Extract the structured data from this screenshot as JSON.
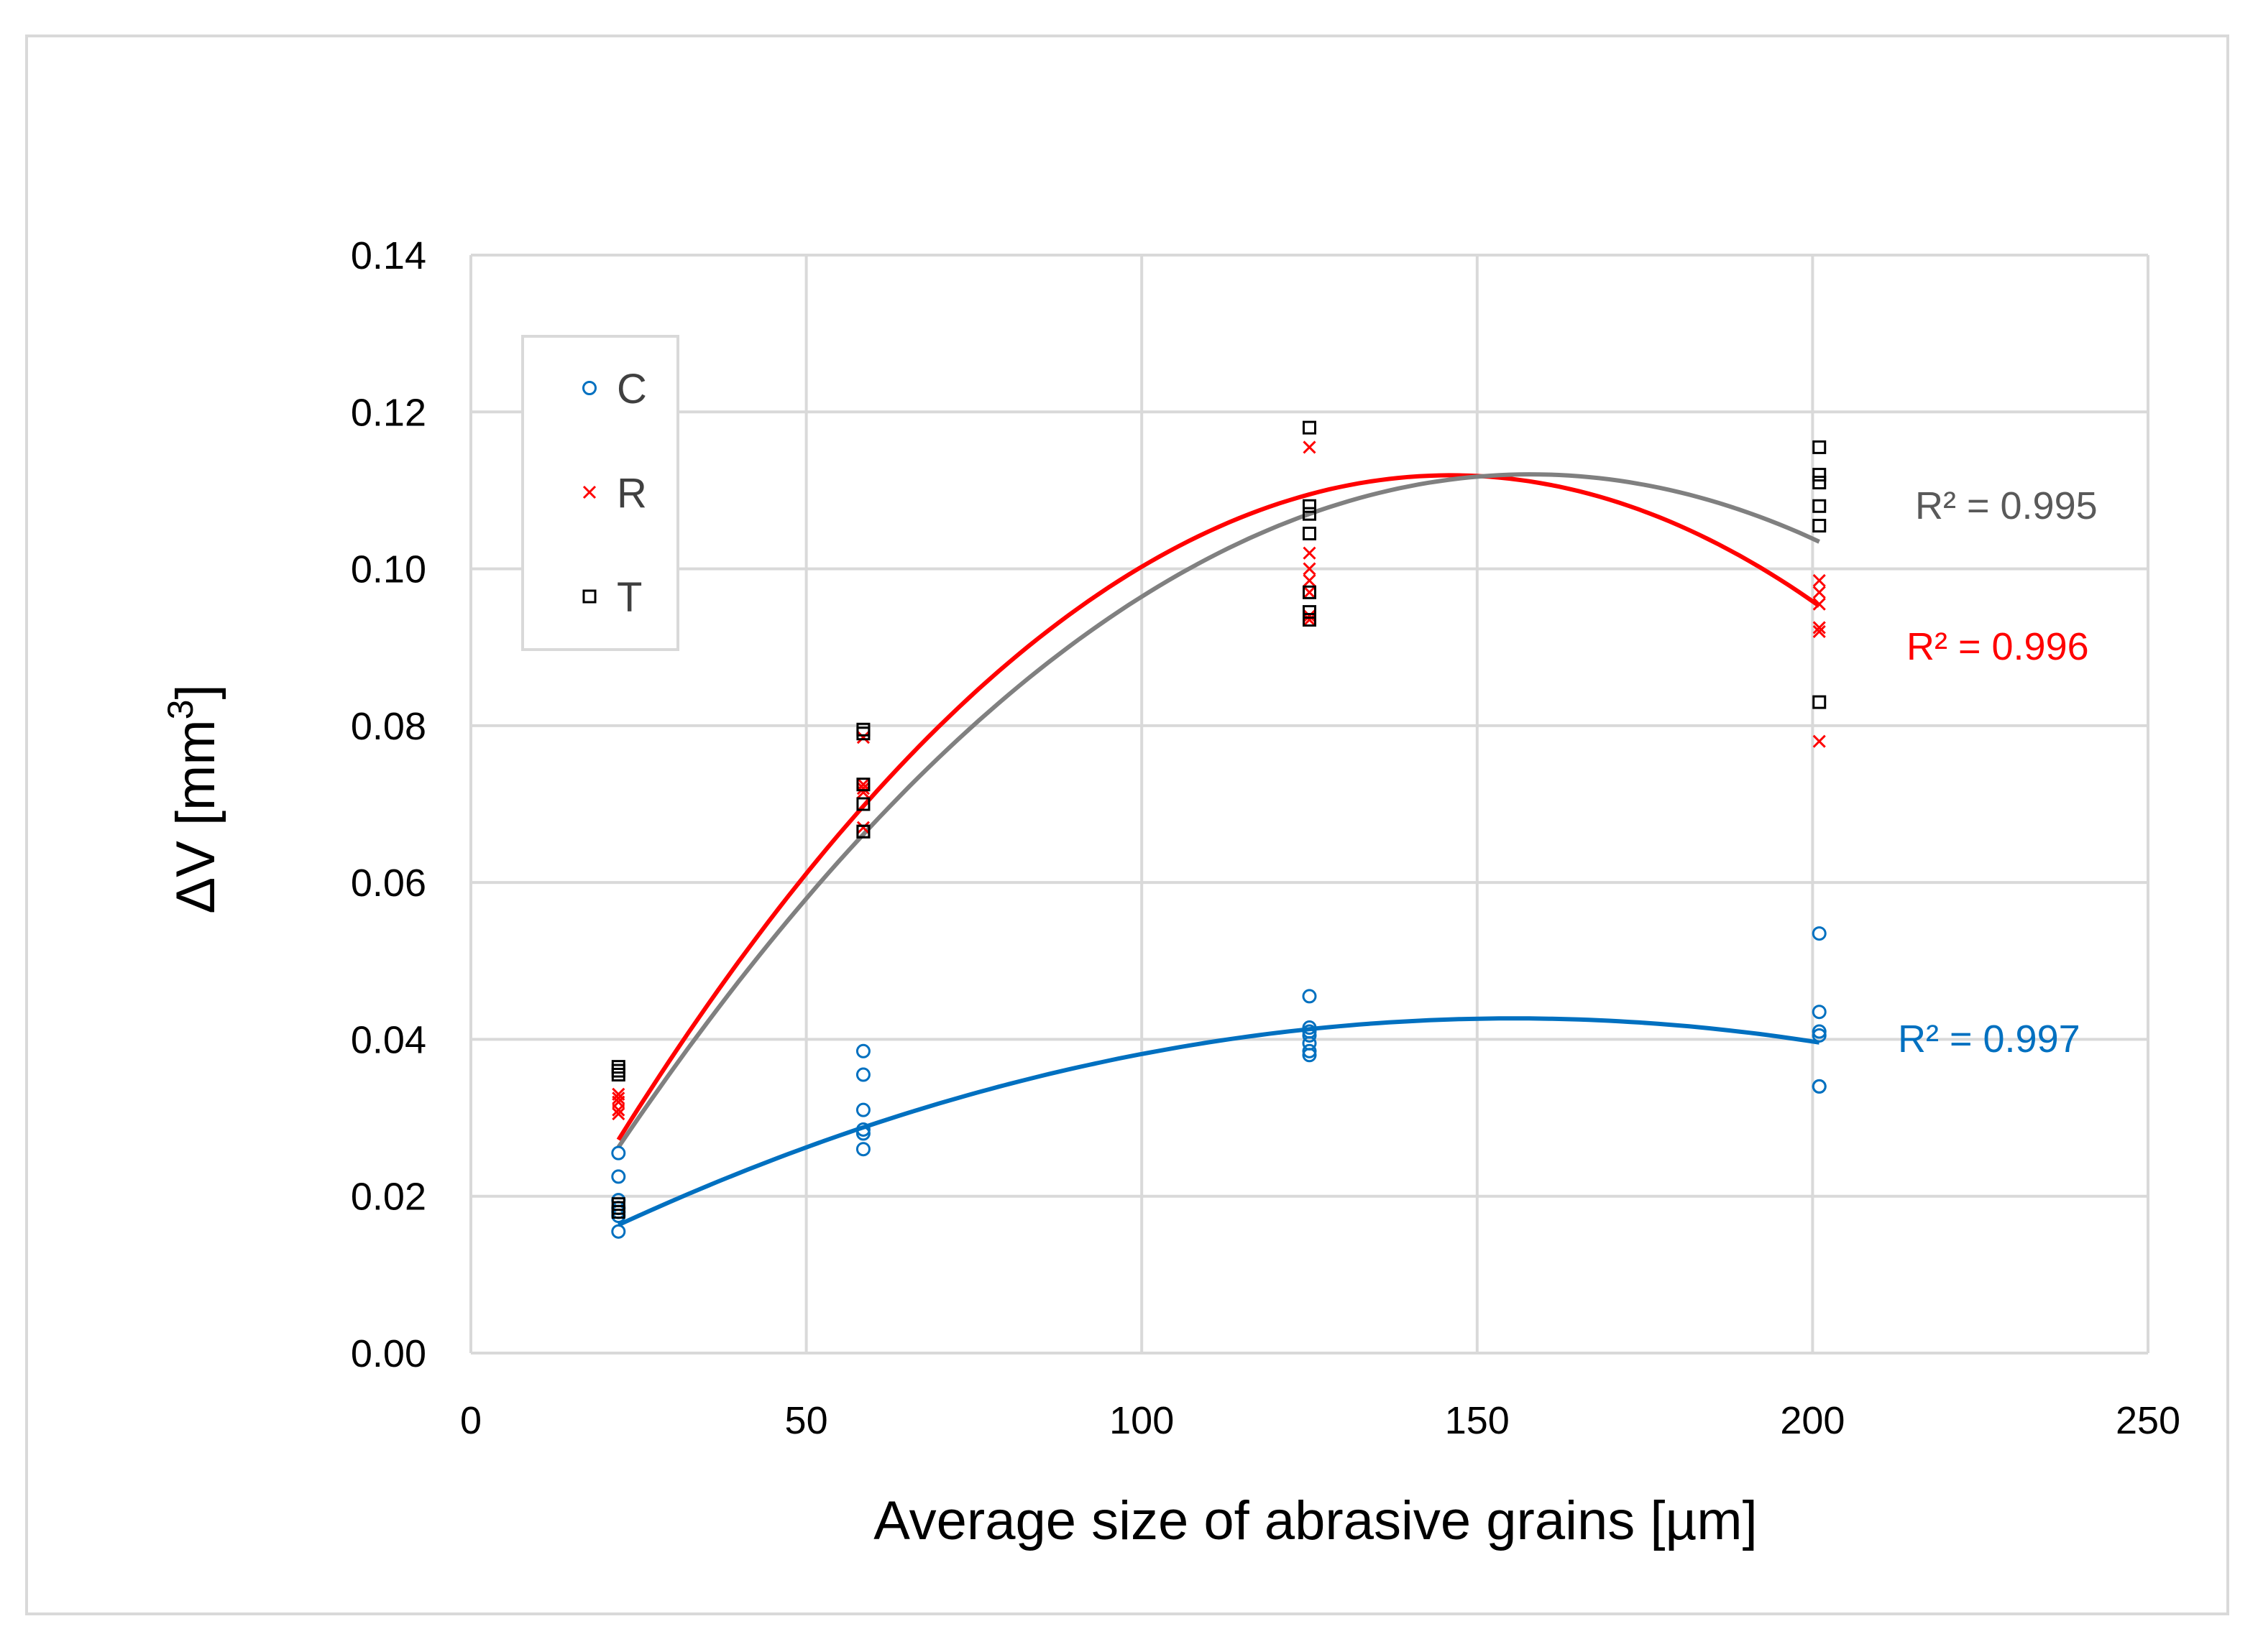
{
  "chart_data": {
    "type": "scatter",
    "title": "",
    "xlabel": "Average size  of abrasive grains [µm]",
    "ylabel_main": "ΔV [mm",
    "ylabel_sup": "3",
    "ylabel_close": "]",
    "xlim": [
      0,
      250
    ],
    "ylim": [
      0,
      0.14
    ],
    "xticks": [
      "0",
      "50",
      "100",
      "150",
      "200",
      "250"
    ],
    "xtick_values": [
      0,
      50,
      100,
      150,
      200,
      250
    ],
    "yticks": [
      "0.00",
      "0.02",
      "0.04",
      "0.06",
      "0.08",
      "0.10",
      "0.12",
      "0.14"
    ],
    "ytick_values": [
      0,
      0.02,
      0.04,
      0.06,
      0.08,
      0.1,
      0.12,
      0.14
    ],
    "grid": true,
    "legend_position": "top-left",
    "series": [
      {
        "name": "C",
        "marker": "circle",
        "color": "#0070c0",
        "x": [
          22,
          22,
          22,
          22,
          22,
          22,
          22,
          58.5,
          58.5,
          58.5,
          58.5,
          58.5,
          58.5,
          125,
          125,
          125,
          125,
          125,
          125,
          125,
          201,
          201,
          201,
          201,
          201,
          201
        ],
        "y": [
          0.0255,
          0.0225,
          0.0195,
          0.0185,
          0.018,
          0.0175,
          0.0155,
          0.0385,
          0.0355,
          0.031,
          0.0285,
          0.028,
          0.026,
          0.0455,
          0.0415,
          0.041,
          0.0405,
          0.0395,
          0.0385,
          0.038,
          0.0535,
          0.0435,
          0.041,
          0.0405,
          0.034,
          0.034
        ],
        "trend_coeffs": [
          0.00693,
          0.00046,
          -1.48e-06
        ],
        "trend_range": [
          22,
          201
        ],
        "r2_label": "R² = 0.997"
      },
      {
        "name": "R",
        "marker": "x",
        "color": "#ff0000",
        "x": [
          22,
          22,
          22,
          22,
          22,
          58.5,
          58.5,
          58.5,
          58.5,
          58.5,
          125,
          125,
          125,
          125,
          125,
          125,
          125,
          201,
          201,
          201,
          201,
          201,
          201
        ],
        "y": [
          0.033,
          0.0325,
          0.032,
          0.031,
          0.0305,
          0.0785,
          0.0725,
          0.072,
          0.0715,
          0.067,
          0.1155,
          0.102,
          0.1,
          0.0985,
          0.097,
          0.094,
          0.0935,
          0.0985,
          0.097,
          0.0955,
          0.0925,
          0.092,
          0.078
        ],
        "trend_coeffs": [
          -0.00554,
          0.001609,
          -5.51e-06
        ],
        "trend_range": [
          22,
          201
        ],
        "r2_label": "R² = 0.996"
      },
      {
        "name": "T",
        "marker": "square",
        "color": "#000000",
        "x": [
          22,
          22,
          22,
          22,
          22,
          22,
          58.5,
          58.5,
          58.5,
          58.5,
          58.5,
          58.5,
          125,
          125,
          125,
          125,
          125,
          125,
          125,
          201,
          201,
          201,
          201,
          201,
          201
        ],
        "y": [
          0.0365,
          0.036,
          0.0355,
          0.019,
          0.0185,
          0.018,
          0.0795,
          0.079,
          0.0725,
          0.07,
          0.0665,
          0.0665,
          0.118,
          0.108,
          0.107,
          0.1045,
          0.097,
          0.0945,
          0.0935,
          0.1155,
          0.112,
          0.111,
          0.108,
          0.1055,
          0.083
        ],
        "trend_coeffs": [
          -0.00375,
          0.001466,
          -4.64e-06
        ],
        "trend_range": [
          22,
          201
        ],
        "trend_color": "#808080",
        "r2_label": "R² = 0.995"
      }
    ]
  }
}
